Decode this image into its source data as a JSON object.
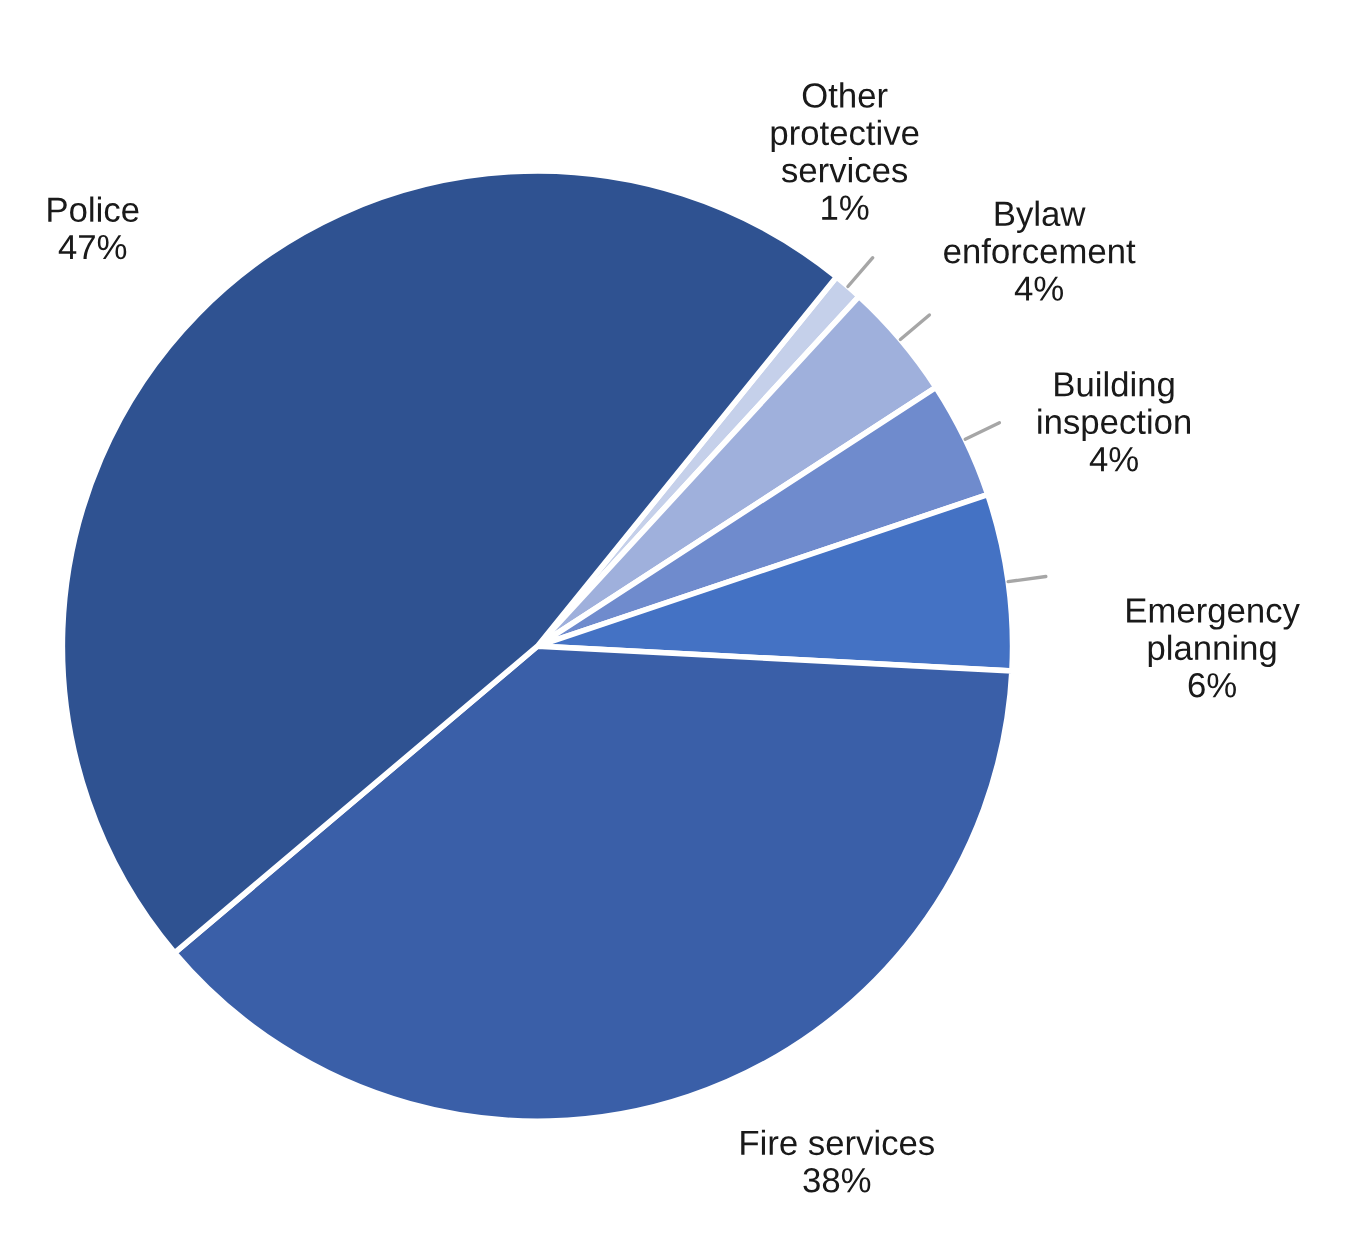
{
  "chart_data": {
    "type": "pie",
    "categories": [
      "Other protective services",
      "Bylaw enforcement",
      "Building inspection",
      "Emergency planning",
      "Fire services",
      "Police"
    ],
    "values": [
      1,
      4,
      4,
      6,
      38,
      47
    ],
    "value_labels": [
      "1%",
      "4%",
      "4%",
      "6%",
      "38%",
      "47%"
    ],
    "colors": [
      "#c5d0ea",
      "#9fb0dc",
      "#6f8bcd",
      "#4472c4",
      "#3a5fa8",
      "#2f5291"
    ],
    "legend": false
  }
}
